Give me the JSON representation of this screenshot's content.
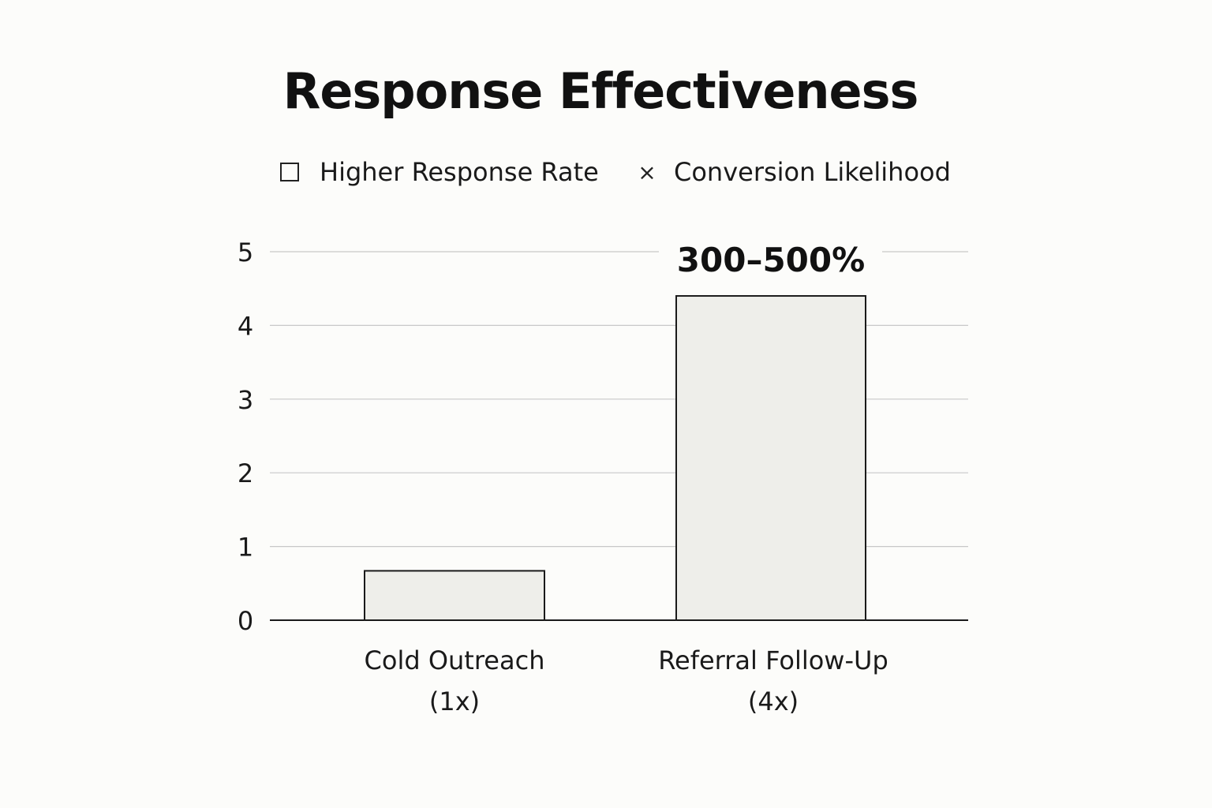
{
  "chart_data": {
    "type": "bar",
    "title": "Response Effectiveness",
    "legend": {
      "placement": "top-center",
      "items": [
        {
          "label": "Higher Response Rate",
          "marker": "square-outline-icon"
        },
        {
          "label": "Conversion Likelihood",
          "marker": "x-mark-icon"
        }
      ]
    },
    "categories": [
      {
        "line1": "Cold Outreach",
        "line2": "(1x)"
      },
      {
        "line1": "Referral Follow-Up",
        "line2": "(4x)"
      }
    ],
    "values": [
      0.67,
      4.4
    ],
    "data_labels": [
      "",
      "300–500%"
    ],
    "yticks": [
      "0",
      "1",
      "2",
      "3",
      "4",
      "5"
    ],
    "ylim": [
      0,
      5
    ],
    "grid": true,
    "colors": {
      "bar_fill": "#eeeeea",
      "bar_stroke": "#1a1a1a",
      "grid": "#c8c8c8",
      "axis": "#1a1a1a",
      "background": "#fcfcfa"
    }
  }
}
